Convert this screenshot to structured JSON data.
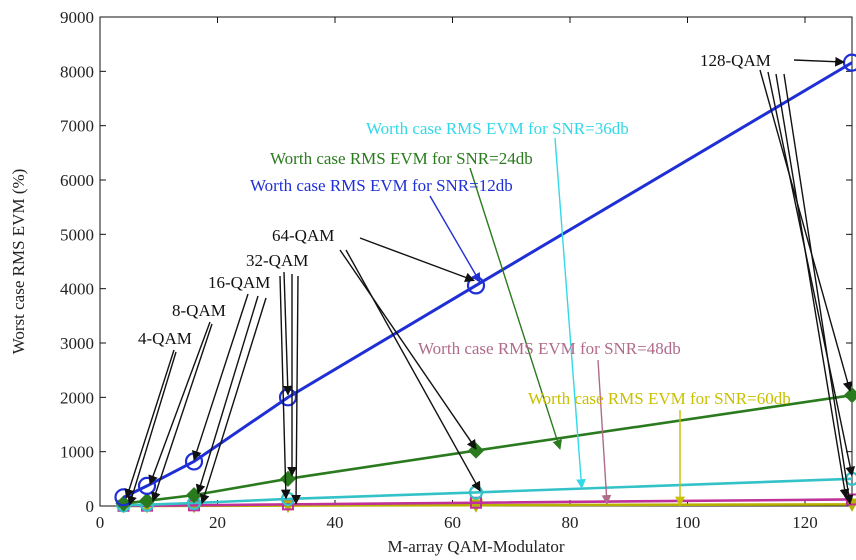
{
  "chart_data": {
    "type": "line",
    "title": "",
    "xlabel": "M-array QAM-Modulator",
    "ylabel": "Worst case RMS EVM (%)",
    "xlim": [
      0,
      128
    ],
    "ylim": [
      0,
      9000
    ],
    "xticks": [
      0,
      20,
      40,
      60,
      80,
      100,
      120
    ],
    "yticks": [
      0,
      1000,
      2000,
      3000,
      4000,
      5000,
      6000,
      7000,
      8000,
      9000
    ],
    "x": [
      4,
      8,
      16,
      32,
      64,
      128
    ],
    "grid": false,
    "series": [
      {
        "name": "Worth case RMS EVM for SNR=12db",
        "color": "#1f2fd6",
        "marker": "circle",
        "values": [
          160,
          370,
          820,
          2000,
          4060,
          8160
        ]
      },
      {
        "name": "Worth case RMS EVM for SNR=24db",
        "color": "#2a7a1e",
        "marker": "diamond",
        "values": [
          45,
          95,
          200,
          500,
          1020,
          2040
        ]
      },
      {
        "name": "Worth case RMS EVM for SNR=36db",
        "color": "#33c2c8",
        "marker": "circle",
        "values": [
          12,
          25,
          55,
          130,
          250,
          500
        ]
      },
      {
        "name": "Worth case RMS EVM for SNR=48db",
        "color": "#c0309a",
        "marker": "square",
        "values": [
          3,
          6,
          12,
          30,
          60,
          120
        ]
      },
      {
        "name": "Worth case RMS EVM for SNR=60db",
        "color": "#b8b000",
        "marker": "triangle",
        "values": [
          1,
          2,
          3,
          8,
          15,
          30
        ]
      }
    ],
    "annotations": [
      {
        "text": "Worth case RMS EVM for SNR=36db",
        "color": "#33d8e8"
      },
      {
        "text": "Worth case RMS EVM for SNR=24db",
        "color": "#2a7a1e"
      },
      {
        "text": "Worth case RMS EVM for SNR=12db",
        "color": "#1f2fd6"
      },
      {
        "text": "Worth case RMS EVM for SNR=48db",
        "color": "#b06a8a"
      },
      {
        "text": "Worth case RMS EVM for SNR=60db",
        "color": "#c8c000"
      }
    ],
    "modulation_labels": [
      "4-QAM",
      "8-QAM",
      "16-QAM",
      "32-QAM",
      "64-QAM",
      "128-QAM"
    ]
  }
}
